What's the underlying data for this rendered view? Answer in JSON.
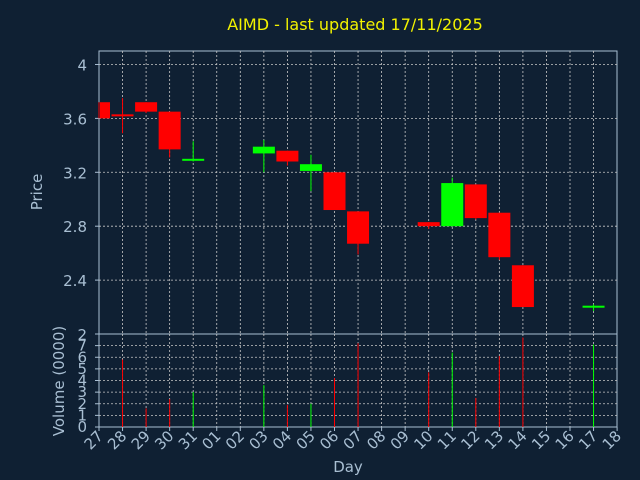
{
  "title": "AIMD - last updated 17/11/2025",
  "colors": {
    "background": "#0f2033",
    "up": "#00ff00",
    "down": "#ff0000",
    "title": "#f2f200",
    "axis": "#a9bfd3",
    "grid": "#c8c8c8"
  },
  "chart_data": {
    "type": "candlestick",
    "xlabel": "Day",
    "price": {
      "ylabel": "Price",
      "ylim": [
        2.0,
        4.1
      ],
      "yticks": [
        "4",
        "3.6",
        "3.2",
        "2.8",
        "2.4",
        "2"
      ],
      "ytick_values": [
        4.0,
        3.6,
        3.2,
        2.8,
        2.4,
        2.0
      ]
    },
    "volume": {
      "ylabel": "Volume (0000)",
      "ylim": [
        0,
        8
      ],
      "yticks": [
        "0",
        "1",
        "2",
        "3",
        "4",
        "5",
        "6",
        "7"
      ]
    },
    "x_ticks": [
      "27",
      "28",
      "29",
      "30",
      "31",
      "01",
      "02",
      "03",
      "04",
      "05",
      "06",
      "07",
      "08",
      "09",
      "10",
      "11",
      "12",
      "13",
      "14",
      "15",
      "16",
      "17",
      "18"
    ],
    "candles": [
      {
        "x": "27",
        "open": 3.72,
        "high": 3.72,
        "low": 3.6,
        "close": 3.6,
        "volume": 0.0
      },
      {
        "x": "28",
        "open": 3.63,
        "high": 3.75,
        "low": 3.49,
        "close": 3.62,
        "volume": 5.8
      },
      {
        "x": "29",
        "open": 3.72,
        "high": 3.72,
        "low": 3.64,
        "close": 3.65,
        "volume": 1.6
      },
      {
        "x": "30",
        "open": 3.65,
        "high": 3.65,
        "low": 3.31,
        "close": 3.37,
        "volume": 2.4
      },
      {
        "x": "31",
        "open": 3.29,
        "high": 3.43,
        "low": 3.28,
        "close": 3.3,
        "volume": 3.0
      },
      {
        "x": "03",
        "open": 3.34,
        "high": 3.44,
        "low": 3.2,
        "close": 3.39,
        "volume": 3.6
      },
      {
        "x": "04",
        "open": 3.36,
        "high": 3.36,
        "low": 3.25,
        "close": 3.28,
        "volume": 1.9
      },
      {
        "x": "05",
        "open": 3.21,
        "high": 3.33,
        "low": 3.06,
        "close": 3.26,
        "volume": 2.0
      },
      {
        "x": "06",
        "open": 3.2,
        "high": 3.2,
        "low": 2.92,
        "close": 2.92,
        "volume": 4.2
      },
      {
        "x": "07",
        "open": 2.91,
        "high": 2.91,
        "low": 2.59,
        "close": 2.67,
        "volume": 7.2
      },
      {
        "x": "10",
        "open": 2.83,
        "high": 2.83,
        "low": 2.78,
        "close": 2.8,
        "volume": 4.7
      },
      {
        "x": "11",
        "open": 2.8,
        "high": 3.16,
        "low": 2.8,
        "close": 3.12,
        "volume": 6.4
      },
      {
        "x": "12",
        "open": 3.11,
        "high": 3.11,
        "low": 2.85,
        "close": 2.86,
        "volume": 2.5
      },
      {
        "x": "13",
        "open": 2.9,
        "high": 2.9,
        "low": 2.55,
        "close": 2.57,
        "volume": 6.1
      },
      {
        "x": "14",
        "open": 2.51,
        "high": 2.51,
        "low": 2.2,
        "close": 2.2,
        "volume": 7.7
      },
      {
        "x": "17",
        "open": 2.2,
        "high": 2.22,
        "low": 2.17,
        "close": 2.21,
        "volume": 7.1
      }
    ]
  }
}
